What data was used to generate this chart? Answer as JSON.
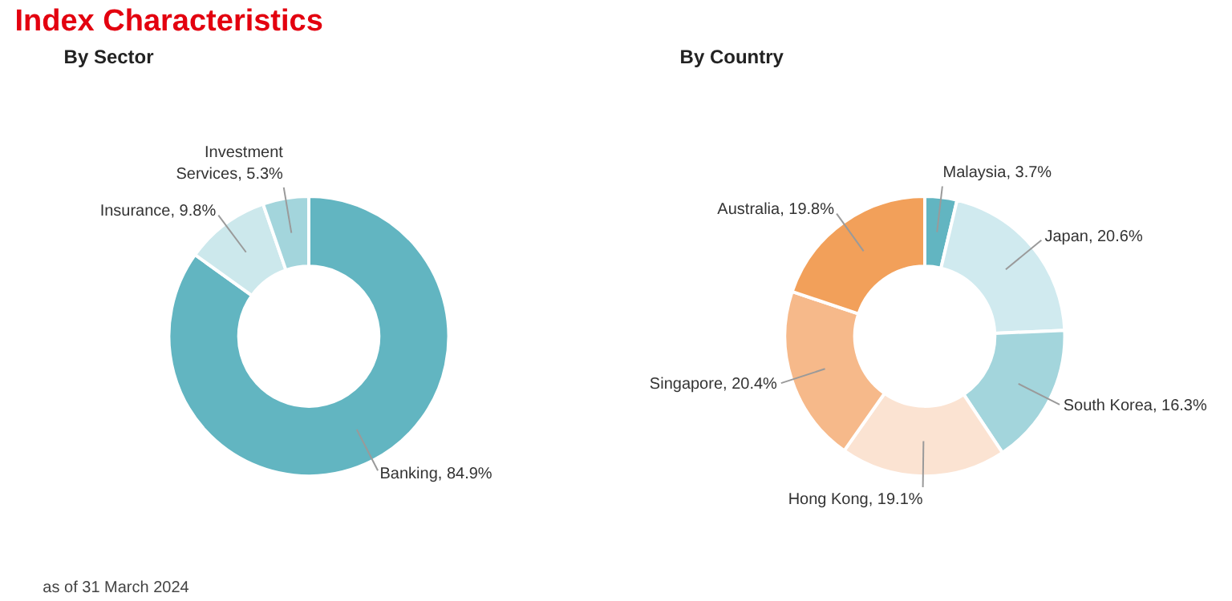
{
  "chart_data": [
    {
      "type": "donut",
      "title": "Index Characteristics",
      "subtitle": "By Sector",
      "categories": [
        "Banking",
        "Insurance",
        "Investment Services"
      ],
      "values": [
        84.9,
        9.8,
        5.3
      ],
      "colors": [
        "#62b5c1",
        "#cce8ec",
        "#a3d5dc"
      ],
      "value_labels": [
        "84.9%",
        "9.8%",
        "5.3%"
      ],
      "annotations": [
        "as of 31 March 2024"
      ]
    },
    {
      "type": "donut",
      "subtitle": "By Country",
      "categories": [
        "Malaysia",
        "Japan",
        "South Korea",
        "Hong Kong",
        "Singapore",
        "Australia"
      ],
      "values": [
        3.7,
        20.6,
        16.3,
        19.1,
        20.4,
        19.8
      ],
      "colors": [
        "#62b5c1",
        "#d0eaef",
        "#a3d5dc",
        "#fbe3d2",
        "#f6b98a",
        "#f2a05a"
      ],
      "value_labels": [
        "3.7%",
        "20.6%",
        "16.3%",
        "19.1%",
        "20.4%",
        "19.8%"
      ]
    }
  ]
}
